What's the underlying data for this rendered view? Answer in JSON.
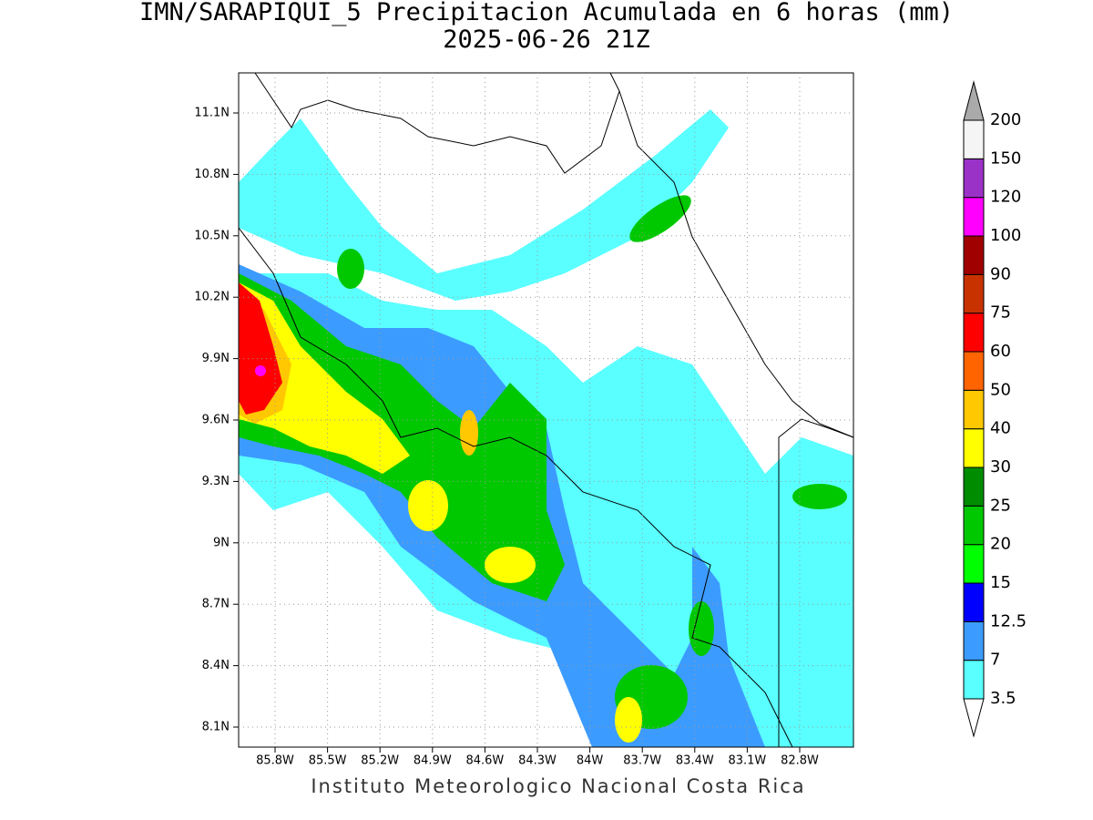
{
  "title": "IMN/SARAPIQUI_5 Precipitacion Acumulada en 6 horas (mm)",
  "subtitle": "2025-06-26 21Z",
  "map": {
    "lat_labels": [
      "11.1N",
      "10.8N",
      "10.5N",
      "10.2N",
      "9.9N",
      "9.6N",
      "9.3N",
      "9N",
      "8.7N",
      "8.4N",
      "8.1N"
    ],
    "lon_labels": [
      "85.8W",
      "85.5W",
      "85.2W",
      "84.9W",
      "84.6W",
      "84.3W",
      "84W",
      "83.7W",
      "83.4W",
      "83.1W",
      "82.8W"
    ]
  },
  "colorbar": {
    "levels": [
      3.5,
      7,
      12.5,
      15,
      20,
      25,
      30,
      40,
      50,
      60,
      75,
      90,
      100,
      120,
      150,
      200
    ],
    "colors": [
      "#ffffff",
      "#5affff",
      "#3c9bff",
      "#0000ff",
      "#00ff00",
      "#00c800",
      "#008c00",
      "#ffff00",
      "#ffc800",
      "#ff6400",
      "#ff0000",
      "#c83200",
      "#a00000",
      "#ff00ff",
      "#9b32c8",
      "#f5f5f5",
      "#aaaaaa"
    ]
  },
  "footer": "Instituto Meteorologico Nacional Costa Rica"
}
